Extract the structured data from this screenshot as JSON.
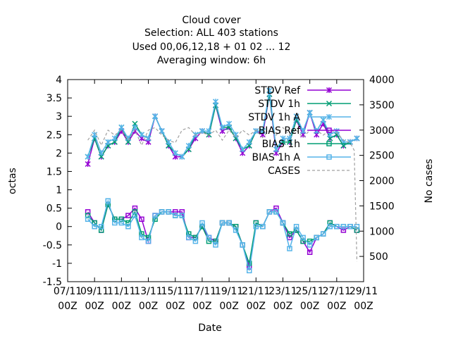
{
  "chart_data": {
    "type": "line",
    "title_lines": [
      "Cloud cover",
      "Selection: ALL    403 stations",
      "Used  00,06,12,18 + 01 02 ... 12",
      "Averaging window:  6h"
    ],
    "xlabel": "Date",
    "ylabel": "octas",
    "y2label": "No cases",
    "x_ticks": [
      "07/11\n00Z",
      "09/11\n00Z",
      "11/11\n00Z",
      "13/11\n00Z",
      "15/11\n00Z",
      "17/11\n00Z",
      "19/11\n00Z",
      "21/11\n00Z",
      "23/11\n00Z",
      "25/11\n00Z",
      "27/11\n00Z",
      "29/11\n00Z"
    ],
    "xlim": [
      0,
      22
    ],
    "ylim": [
      -1.5,
      4
    ],
    "y_ticks": [
      "-1.5",
      "-1",
      "-0.5",
      "0",
      "0.5",
      "1",
      "1.5",
      "2",
      "2.5",
      "3",
      "3.5",
      "4"
    ],
    "y2lim": [
      0,
      4000
    ],
    "y2_ticks": [
      "500",
      "1000",
      "1500",
      "2000",
      "2500",
      "3000",
      "3500",
      "4000"
    ],
    "x_unit": "days since 07/11 00Z",
    "grid": false,
    "legend_position": "top-right",
    "series": [
      {
        "name": "STDV Ref",
        "axis": "y1",
        "color": "#9400d3",
        "marker": "star",
        "x": [
          1.5,
          2.0,
          2.5,
          3.0,
          3.5,
          4.0,
          4.5,
          5.0,
          5.5,
          6.0,
          6.5,
          7.0,
          7.5,
          8.0,
          8.5,
          9.0,
          9.5,
          10.0,
          10.5,
          11.0,
          11.5,
          12.0,
          12.5,
          13.0,
          13.5,
          14.0,
          14.5,
          15.0,
          15.5,
          16.0,
          16.5,
          17.0,
          17.5,
          18.0,
          18.5,
          19.0,
          19.5,
          20.0,
          20.5,
          21.0,
          21.5
        ],
        "values": [
          1.7,
          2.4,
          1.9,
          2.2,
          2.3,
          2.6,
          2.3,
          2.6,
          2.4,
          2.3,
          3.0,
          2.6,
          2.2,
          1.9,
          1.9,
          2.1,
          2.4,
          2.6,
          2.5,
          3.3,
          2.6,
          2.7,
          2.4,
          2.0,
          2.2,
          2.6,
          2.5,
          3.6,
          2.0,
          2.3,
          2.3,
          2.9,
          2.5,
          3.1,
          2.5,
          2.8,
          2.4,
          2.5,
          2.2,
          2.3,
          2.4
        ]
      },
      {
        "name": "STDV 1h",
        "axis": "y1",
        "color": "#009e73",
        "marker": "x",
        "x": [
          1.5,
          2.0,
          2.5,
          3.0,
          3.5,
          4.0,
          4.5,
          5.0,
          5.5,
          6.0,
          6.5,
          7.0,
          7.5,
          8.0,
          8.5,
          9.0,
          9.5,
          10.0,
          10.5,
          11.0,
          11.5,
          12.0,
          12.5,
          13.0,
          13.5,
          14.0,
          14.5,
          15.0,
          15.5,
          16.0,
          16.5,
          17.0,
          17.5,
          18.0,
          18.5,
          19.0,
          19.5,
          20.0,
          20.5,
          21.0,
          21.5
        ],
        "values": [
          1.9,
          2.4,
          1.9,
          2.2,
          2.3,
          2.7,
          2.3,
          2.8,
          2.5,
          2.4,
          3.0,
          2.6,
          2.2,
          2.0,
          1.9,
          2.1,
          2.5,
          2.6,
          2.5,
          3.3,
          2.7,
          2.7,
          2.4,
          2.1,
          2.2,
          2.6,
          2.6,
          3.6,
          2.1,
          2.3,
          2.3,
          2.9,
          2.6,
          3.1,
          2.6,
          2.9,
          2.4,
          2.5,
          2.2,
          2.3,
          2.4
        ]
      },
      {
        "name": "STDV 1h A",
        "axis": "y1",
        "color": "#56b4e9",
        "marker": "star",
        "x": [
          1.5,
          2.0,
          2.5,
          3.0,
          3.5,
          4.0,
          4.5,
          5.0,
          5.5,
          6.0,
          6.5,
          7.0,
          7.5,
          8.0,
          8.5,
          9.0,
          9.5,
          10.0,
          10.5,
          11.0,
          11.5,
          12.0,
          12.5,
          13.0,
          13.5,
          14.0,
          14.5,
          15.0,
          15.5,
          16.0,
          16.5,
          17.0,
          17.5,
          18.0,
          18.5,
          19.0,
          19.5,
          20.0,
          20.5,
          21.0,
          21.5
        ],
        "values": [
          1.9,
          2.5,
          2.0,
          2.3,
          2.4,
          2.7,
          2.4,
          2.7,
          2.5,
          2.4,
          3.0,
          2.6,
          2.3,
          2.0,
          1.9,
          2.2,
          2.5,
          2.6,
          2.6,
          3.4,
          2.7,
          2.8,
          2.5,
          2.1,
          2.3,
          2.6,
          2.6,
          3.7,
          2.1,
          2.4,
          2.4,
          3.0,
          2.6,
          3.1,
          2.6,
          2.9,
          2.5,
          2.6,
          2.3,
          2.3,
          2.4
        ]
      },
      {
        "name": "BIAS Ref",
        "axis": "y1",
        "color": "#9400d3",
        "marker": "square",
        "x": [
          1.5,
          2.0,
          2.5,
          3.0,
          3.5,
          4.0,
          4.5,
          5.0,
          5.5,
          6.0,
          6.5,
          7.0,
          7.5,
          8.0,
          8.5,
          9.0,
          9.5,
          10.0,
          10.5,
          11.0,
          11.5,
          12.0,
          12.5,
          13.0,
          13.5,
          14.0,
          14.5,
          15.0,
          15.5,
          16.0,
          16.5,
          17.0,
          17.5,
          18.0,
          18.5,
          19.0,
          19.5,
          20.0,
          20.5,
          21.0,
          21.5
        ],
        "values": [
          0.4,
          0.1,
          -0.1,
          0.6,
          0.2,
          0.2,
          0.3,
          0.5,
          0.2,
          -0.4,
          0.3,
          0.4,
          0.4,
          0.4,
          0.4,
          -0.3,
          -0.3,
          0.0,
          -0.3,
          -0.4,
          0.1,
          0.1,
          0.0,
          -0.5,
          -1.1,
          0.1,
          0.0,
          0.4,
          0.5,
          0.1,
          -0.3,
          -0.1,
          -0.4,
          -0.7,
          -0.3,
          -0.2,
          0.1,
          0.0,
          -0.1,
          0.0,
          -0.1
        ]
      },
      {
        "name": "BIAS 1h",
        "axis": "y1",
        "color": "#009e73",
        "marker": "square",
        "x": [
          1.5,
          2.0,
          2.5,
          3.0,
          3.5,
          4.0,
          4.5,
          5.0,
          5.5,
          6.0,
          6.5,
          7.0,
          7.5,
          8.0,
          8.5,
          9.0,
          9.5,
          10.0,
          10.5,
          11.0,
          11.5,
          12.0,
          12.5,
          13.0,
          13.5,
          14.0,
          14.5,
          15.0,
          15.5,
          16.0,
          16.5,
          17.0,
          17.5,
          18.0,
          18.5,
          19.0,
          19.5,
          20.0,
          20.5,
          21.0,
          21.5
        ],
        "values": [
          0.3,
          0.1,
          -0.1,
          0.6,
          0.2,
          0.2,
          0.1,
          0.4,
          -0.2,
          -0.3,
          0.2,
          0.4,
          0.4,
          0.3,
          0.3,
          -0.2,
          -0.3,
          0.0,
          -0.4,
          -0.4,
          0.1,
          0.1,
          0.0,
          -0.5,
          -1.0,
          0.1,
          0.0,
          0.4,
          0.4,
          0.1,
          -0.2,
          -0.1,
          -0.4,
          -0.4,
          -0.3,
          -0.2,
          0.1,
          0.0,
          0.0,
          0.0,
          -0.1
        ]
      },
      {
        "name": "BIAS 1h A",
        "axis": "y1",
        "color": "#56b4e9",
        "marker": "square",
        "x": [
          1.5,
          2.0,
          2.5,
          3.0,
          3.5,
          4.0,
          4.5,
          5.0,
          5.5,
          6.0,
          6.5,
          7.0,
          7.5,
          8.0,
          8.5,
          9.0,
          9.5,
          10.0,
          10.5,
          11.0,
          11.5,
          12.0,
          12.5,
          13.0,
          13.5,
          14.0,
          14.5,
          15.0,
          15.5,
          16.0,
          16.5,
          17.0,
          17.5,
          18.0,
          18.5,
          19.0,
          19.5,
          20.0,
          20.5,
          21.0,
          21.5
        ],
        "values": [
          0.2,
          0.0,
          0.0,
          0.7,
          0.1,
          0.1,
          0.0,
          0.3,
          -0.3,
          -0.4,
          0.3,
          0.4,
          0.4,
          0.3,
          0.3,
          -0.3,
          -0.4,
          0.1,
          -0.3,
          -0.5,
          0.1,
          0.1,
          -0.1,
          -0.5,
          -1.2,
          0.0,
          0.0,
          0.4,
          0.4,
          0.1,
          -0.6,
          0.0,
          -0.3,
          -0.5,
          -0.3,
          -0.2,
          0.0,
          0.0,
          0.0,
          0.0,
          0.0
        ]
      },
      {
        "name": "CASES",
        "axis": "y2",
        "color": "#a0a0a0",
        "marker": "none",
        "dashed": true,
        "x": [
          1.5,
          2.0,
          2.5,
          3.0,
          3.5,
          4.0,
          4.5,
          5.0,
          5.5,
          6.0,
          6.5,
          7.0,
          7.5,
          8.0,
          8.5,
          9.0,
          9.5,
          10.0,
          10.5,
          11.0,
          11.5,
          12.0,
          12.5,
          13.0,
          13.5,
          14.0,
          14.5,
          15.0,
          15.5,
          16.0,
          16.5,
          17.0,
          17.5,
          18.0,
          18.5,
          19.0,
          19.5,
          20.0,
          20.5,
          21.0,
          21.3,
          21.5
        ],
        "values": [
          2800,
          3000,
          2700,
          3000,
          2900,
          3000,
          2800,
          3000,
          2700,
          3000,
          3050,
          2900,
          2800,
          2750,
          3000,
          3050,
          2900,
          2950,
          2900,
          3000,
          2800,
          3000,
          2850,
          3000,
          2900,
          3000,
          2850,
          3000,
          2900,
          3050,
          2900,
          3000,
          2850,
          3000,
          3000,
          2900,
          3000,
          2950,
          2800,
          2750,
          2600,
          400
        ]
      }
    ]
  }
}
